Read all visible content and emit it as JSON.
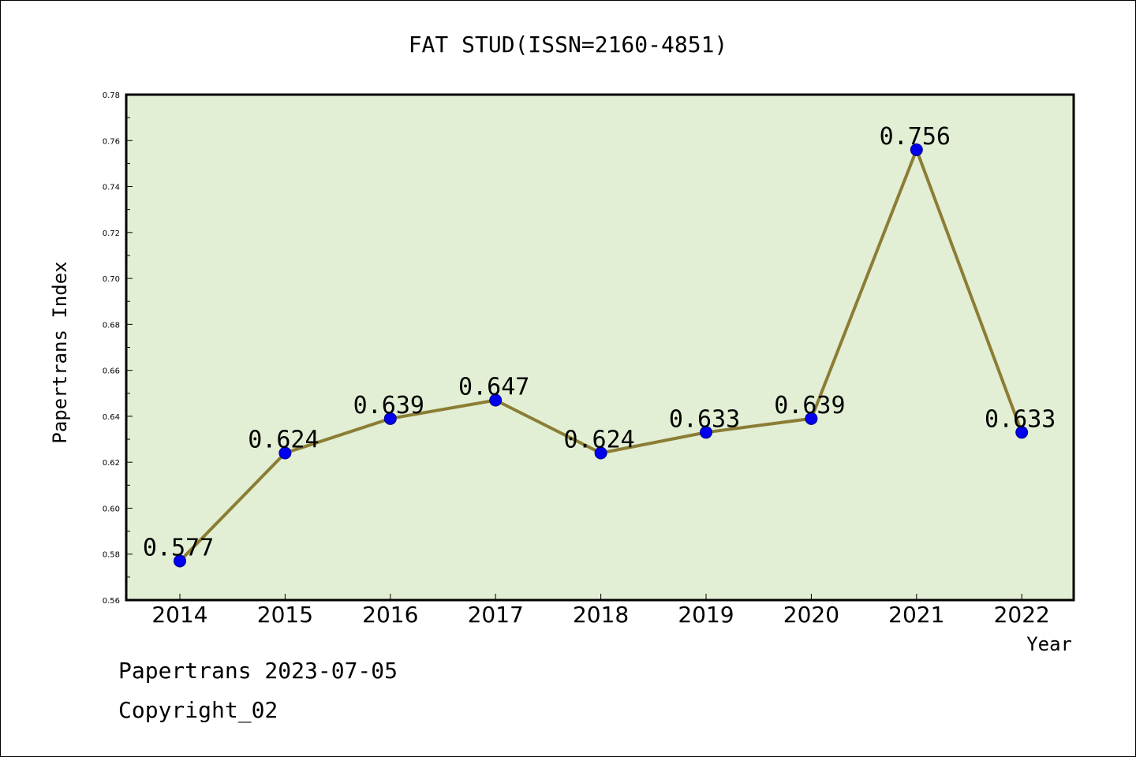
{
  "chart_data": {
    "type": "line",
    "title": "FAT STUD(ISSN=2160-4851)",
    "xlabel": "Year",
    "ylabel": "Papertrans Index",
    "categories": [
      "2014",
      "2015",
      "2016",
      "2017",
      "2018",
      "2019",
      "2020",
      "2021",
      "2022"
    ],
    "values": [
      0.577,
      0.624,
      0.639,
      0.647,
      0.624,
      0.633,
      0.639,
      0.756,
      0.633
    ],
    "data_labels": [
      "0.577",
      "0.624",
      "0.639",
      "0.647",
      "0.624",
      "0.633",
      "0.639",
      "0.756",
      "0.633"
    ],
    "ylim": [
      0.56,
      0.78
    ],
    "yticks": [
      "0.56",
      "0.58",
      "0.60",
      "0.62",
      "0.64",
      "0.66",
      "0.68",
      "0.70",
      "0.72",
      "0.74",
      "0.76",
      "0.78"
    ],
    "grid": false,
    "colors": {
      "plot_bg": "#e2efd4",
      "line": "#8b7d35",
      "marker": "#0000ee"
    }
  },
  "footer": {
    "line1": "Papertrans 2023-07-05",
    "line2": "Copyright_02"
  }
}
